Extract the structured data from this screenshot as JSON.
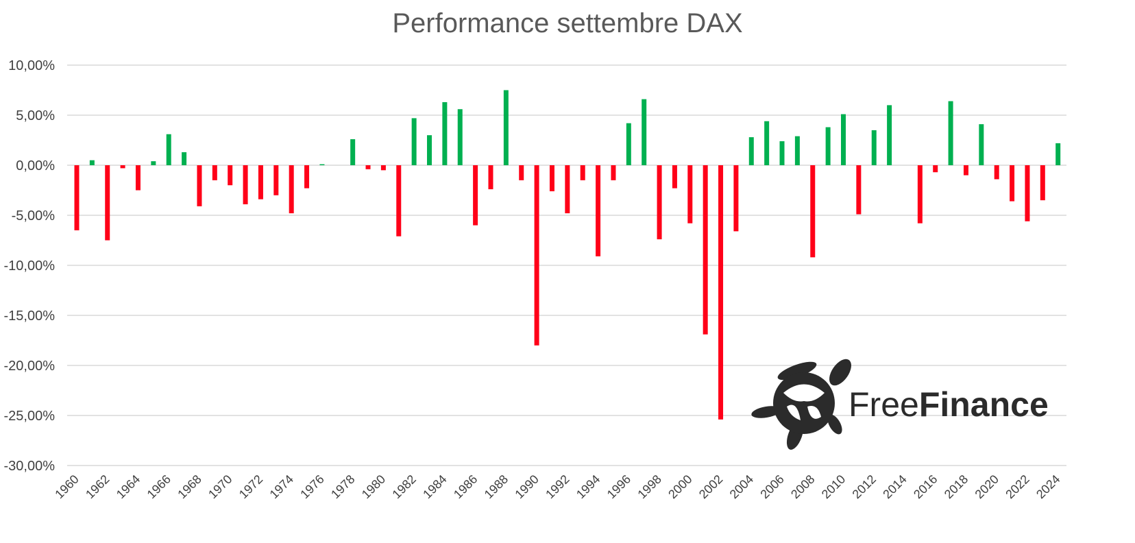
{
  "chart_data": {
    "type": "bar",
    "title": "Performance settembre DAX",
    "xlabel": "",
    "ylabel": "",
    "ylim": [
      -30,
      10
    ],
    "y_ticks": [
      "10,00%",
      "5,00%",
      "0,00%",
      "-5,00%",
      "-10,00%",
      "-15,00%",
      "-20,00%",
      "-25,00%",
      "-30,00%"
    ],
    "y_tick_values": [
      10,
      5,
      0,
      -5,
      -10,
      -15,
      -20,
      -25,
      -30
    ],
    "x_tick_labels": [
      "1960",
      "1962",
      "1964",
      "1966",
      "1968",
      "1970",
      "1972",
      "1974",
      "1976",
      "1978",
      "1980",
      "1982",
      "1984",
      "1986",
      "1988",
      "1990",
      "1992",
      "1994",
      "1996",
      "1998",
      "2000",
      "2002",
      "2004",
      "2006",
      "2008",
      "2010",
      "2012",
      "2014",
      "2016",
      "2018",
      "2020",
      "2022",
      "2024"
    ],
    "grid": true,
    "legend": "none",
    "categories": [
      "1960",
      "1961",
      "1962",
      "1963",
      "1964",
      "1965",
      "1966",
      "1967",
      "1968",
      "1969",
      "1970",
      "1971",
      "1972",
      "1973",
      "1974",
      "1975",
      "1976",
      "1977",
      "1978",
      "1979",
      "1980",
      "1981",
      "1982",
      "1983",
      "1984",
      "1985",
      "1986",
      "1987",
      "1988",
      "1989",
      "1990",
      "1991",
      "1992",
      "1993",
      "1994",
      "1995",
      "1996",
      "1997",
      "1998",
      "1999",
      "2000",
      "2001",
      "2002",
      "2003",
      "2004",
      "2005",
      "2006",
      "2007",
      "2008",
      "2009",
      "2010",
      "2011",
      "2012",
      "2013",
      "2014",
      "2015",
      "2016",
      "2017",
      "2018",
      "2019",
      "2020",
      "2021",
      "2022",
      "2023",
      "2024"
    ],
    "values": [
      -6.5,
      0.5,
      -7.5,
      -0.3,
      -2.5,
      0.4,
      3.1,
      1.3,
      -4.1,
      -1.5,
      -2.0,
      -3.9,
      -3.4,
      -3.0,
      -4.8,
      -2.3,
      0.1,
      0.0,
      2.6,
      -0.4,
      -0.5,
      -7.1,
      4.7,
      3.0,
      6.3,
      5.6,
      -6.0,
      -2.4,
      7.5,
      -1.5,
      -18.0,
      -2.6,
      -4.8,
      -1.5,
      -9.1,
      -1.5,
      4.2,
      6.6,
      -7.4,
      -2.3,
      -5.8,
      -16.9,
      -25.4,
      -6.6,
      2.8,
      4.4,
      2.4,
      2.9,
      -9.2,
      3.8,
      5.1,
      -4.9,
      3.5,
      6.0,
      0.0,
      -5.8,
      -0.7,
      6.4,
      -1.0,
      4.1,
      -1.4,
      -3.6,
      -5.6,
      -3.5,
      2.2
    ],
    "colors": {
      "positive": "#00b050",
      "negative": "#ff0018"
    }
  },
  "watermark": {
    "brand_light": "Free",
    "brand_bold": "Finance",
    "icon": "turtle-icon"
  }
}
